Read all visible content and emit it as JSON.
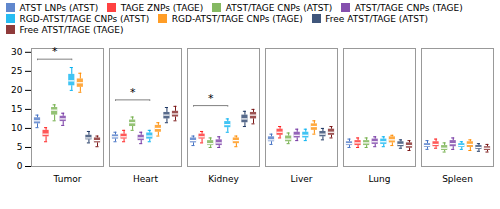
{
  "chart_data": {
    "type": "box",
    "categories": [
      "Tumor",
      "Heart",
      "Kidney",
      "Liver",
      "Lung",
      "Spleen"
    ],
    "series": [
      {
        "name": "ATST LNPs (ATST)",
        "color": "#4472C4",
        "values": [
          {
            "median": 12.0,
            "q1": 11.2,
            "q3": 12.8,
            "whislo": 10.2,
            "whishi": 13.5
          },
          {
            "median": 7.8,
            "q1": 7.2,
            "q3": 8.3,
            "whislo": 6.5,
            "whishi": 9.0
          },
          {
            "median": 6.8,
            "q1": 6.2,
            "q3": 7.5,
            "whislo": 5.5,
            "whishi": 8.0
          },
          {
            "median": 7.0,
            "q1": 6.5,
            "q3": 7.8,
            "whislo": 5.8,
            "whishi": 8.5
          },
          {
            "median": 6.0,
            "q1": 5.5,
            "q3": 6.5,
            "whislo": 5.0,
            "whishi": 7.2
          },
          {
            "median": 5.5,
            "q1": 5.0,
            "q3": 6.0,
            "whislo": 4.5,
            "whishi": 6.8
          }
        ]
      },
      {
        "name": "TAGE ZNPs (TAGE)",
        "color": "#FF2020",
        "values": [
          {
            "median": 8.5,
            "q1": 7.8,
            "q3": 9.5,
            "whislo": 6.5,
            "whishi": 10.2
          },
          {
            "median": 7.8,
            "q1": 7.2,
            "q3": 8.5,
            "whislo": 6.5,
            "whishi": 9.5
          },
          {
            "median": 7.8,
            "q1": 7.2,
            "q3": 8.5,
            "whislo": 6.2,
            "whishi": 9.2
          },
          {
            "median": 9.0,
            "q1": 8.2,
            "q3": 9.8,
            "whislo": 7.5,
            "whishi": 10.5
          },
          {
            "median": 6.2,
            "q1": 5.5,
            "q3": 6.8,
            "whislo": 5.0,
            "whishi": 7.5
          },
          {
            "median": 5.8,
            "q1": 5.2,
            "q3": 6.5,
            "whislo": 4.8,
            "whishi": 7.2
          }
        ]
      },
      {
        "name": "ATST/TAGE CNPs (ATST)",
        "color": "#70AD47",
        "values": [
          {
            "median": 14.8,
            "q1": 13.5,
            "q3": 15.5,
            "whislo": 12.0,
            "whishi": 16.2
          },
          {
            "median": 11.5,
            "q1": 10.5,
            "q3": 12.2,
            "whislo": 9.5,
            "whishi": 13.0
          },
          {
            "median": 6.0,
            "q1": 5.5,
            "q3": 6.8,
            "whislo": 5.0,
            "whishi": 7.5
          },
          {
            "median": 7.2,
            "q1": 6.5,
            "q3": 8.0,
            "whislo": 6.0,
            "whishi": 8.8
          },
          {
            "median": 6.2,
            "q1": 5.5,
            "q3": 6.8,
            "whislo": 5.0,
            "whishi": 7.5
          },
          {
            "median": 4.8,
            "q1": 4.2,
            "q3": 5.5,
            "whislo": 3.8,
            "whishi": 6.2
          }
        ]
      },
      {
        "name": "ATST/TAGE CNPs (TAGE)",
        "color": "#7030A0",
        "values": [
          {
            "median": 12.5,
            "q1": 11.8,
            "q3": 13.2,
            "whislo": 10.8,
            "whishi": 14.0
          },
          {
            "median": 7.5,
            "q1": 6.8,
            "q3": 8.2,
            "whislo": 6.0,
            "whishi": 9.0
          },
          {
            "median": 6.2,
            "q1": 5.5,
            "q3": 7.0,
            "whislo": 5.0,
            "whishi": 7.8
          },
          {
            "median": 8.2,
            "q1": 7.5,
            "q3": 9.0,
            "whislo": 6.8,
            "whishi": 9.8
          },
          {
            "median": 6.5,
            "q1": 5.8,
            "q3": 7.2,
            "whislo": 5.2,
            "whishi": 7.8
          },
          {
            "median": 6.0,
            "q1": 5.2,
            "q3": 6.8,
            "whislo": 4.5,
            "whishi": 7.5
          }
        ]
      },
      {
        "name": "RGD-ATST/TAGE CNPs (ATST)",
        "color": "#00B0F0",
        "values": [
          {
            "median": 22.5,
            "q1": 21.2,
            "q3": 24.2,
            "whislo": 20.0,
            "whishi": 26.0
          },
          {
            "median": 8.0,
            "q1": 7.2,
            "q3": 8.8,
            "whislo": 6.5,
            "whishi": 9.5
          },
          {
            "median": 11.0,
            "q1": 10.2,
            "q3": 11.8,
            "whislo": 9.0,
            "whishi": 12.5
          },
          {
            "median": 8.2,
            "q1": 7.5,
            "q3": 9.0,
            "whislo": 6.8,
            "whishi": 9.8
          },
          {
            "median": 6.5,
            "q1": 5.8,
            "q3": 7.2,
            "whislo": 5.2,
            "whishi": 7.8
          },
          {
            "median": 5.5,
            "q1": 5.0,
            "q3": 6.0,
            "whislo": 4.5,
            "whishi": 6.5
          }
        ]
      },
      {
        "name": "RGD-ATST/TAGE CNPs (TAGE)",
        "color": "#FF8C00",
        "values": [
          {
            "median": 22.0,
            "q1": 20.8,
            "q3": 23.0,
            "whislo": 19.5,
            "whishi": 24.5
          },
          {
            "median": 10.0,
            "q1": 9.0,
            "q3": 10.8,
            "whislo": 8.0,
            "whishi": 11.5
          },
          {
            "median": 6.8,
            "q1": 6.0,
            "q3": 7.5,
            "whislo": 5.2,
            "whishi": 8.0
          },
          {
            "median": 10.5,
            "q1": 9.5,
            "q3": 11.2,
            "whislo": 8.5,
            "whishi": 12.0
          },
          {
            "median": 7.0,
            "q1": 6.2,
            "q3": 7.8,
            "whislo": 5.5,
            "whishi": 8.2
          },
          {
            "median": 5.8,
            "q1": 5.0,
            "q3": 6.5,
            "whislo": 4.2,
            "whishi": 7.0
          }
        ]
      },
      {
        "name": "Free ATST/TAGE (ATST)",
        "color": "#1F3864",
        "values": [
          {
            "median": 7.5,
            "q1": 7.0,
            "q3": 8.2,
            "whislo": 6.2,
            "whishi": 9.2
          },
          {
            "median": 13.5,
            "q1": 12.5,
            "q3": 14.2,
            "whislo": 11.5,
            "whishi": 15.5
          },
          {
            "median": 12.5,
            "q1": 11.5,
            "q3": 13.5,
            "whislo": 10.5,
            "whishi": 14.5
          },
          {
            "median": 8.5,
            "q1": 7.8,
            "q3": 9.2,
            "whislo": 7.0,
            "whishi": 10.0
          },
          {
            "median": 5.8,
            "q1": 5.2,
            "q3": 6.5,
            "whislo": 4.8,
            "whishi": 7.0
          },
          {
            "median": 5.0,
            "q1": 4.5,
            "q3": 5.5,
            "whislo": 4.0,
            "whishi": 6.0
          }
        ]
      },
      {
        "name": "Free ATST/TAGE (TAGE)",
        "color": "#7B1818",
        "values": [
          {
            "median": 6.8,
            "q1": 6.2,
            "q3": 7.5,
            "whislo": 5.2,
            "whishi": 8.0
          },
          {
            "median": 13.8,
            "q1": 13.0,
            "q3": 14.5,
            "whislo": 12.0,
            "whishi": 15.8
          },
          {
            "median": 13.5,
            "q1": 12.5,
            "q3": 14.2,
            "whislo": 11.2,
            "whishi": 15.0
          },
          {
            "median": 9.0,
            "q1": 8.2,
            "q3": 9.8,
            "whislo": 7.5,
            "whishi": 10.5
          },
          {
            "median": 5.5,
            "q1": 4.8,
            "q3": 6.2,
            "whislo": 4.2,
            "whishi": 6.8
          },
          {
            "median": 4.8,
            "q1": 4.2,
            "q3": 5.2,
            "whislo": 3.8,
            "whishi": 5.8
          }
        ]
      }
    ],
    "annotations": [
      {
        "category": "Tumor",
        "from": "ATST LNPs (ATST)",
        "to": "RGD-ATST/TAGE CNPs (ATST)",
        "y": 28.2,
        "text": "*"
      },
      {
        "category": "Heart",
        "from": "ATST LNPs (ATST)",
        "to": "RGD-ATST/TAGE CNPs (ATST)",
        "y": 17.5,
        "text": "*"
      },
      {
        "category": "Kidney",
        "from": "ATST LNPs (ATST)",
        "to": "RGD-ATST/TAGE CNPs (ATST)",
        "y": 16.0,
        "text": "*"
      }
    ],
    "ylim": [
      0,
      31
    ],
    "yticks": [
      0,
      5,
      10,
      15,
      20,
      25,
      30
    ],
    "legend": "top",
    "grid": false
  }
}
